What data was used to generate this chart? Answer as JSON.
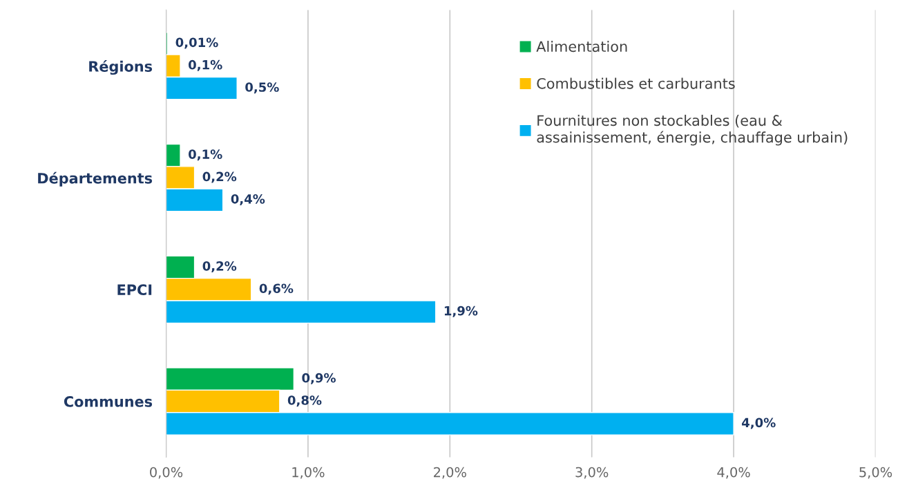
{
  "chart_data": {
    "type": "bar",
    "orientation": "horizontal",
    "categories": [
      "Régions",
      "Départements",
      "EPCI",
      "Communes"
    ],
    "series": [
      {
        "name": "Alimentation",
        "color": "#00b050",
        "values": [
          0.01,
          0.1,
          0.2,
          0.9
        ],
        "value_labels": [
          "0,01%",
          "0,1%",
          "0,2%",
          "0,9%"
        ]
      },
      {
        "name": "Combustibles et carburants",
        "color": "#ffc000",
        "values": [
          0.1,
          0.2,
          0.6,
          0.8
        ],
        "value_labels": [
          "0,1%",
          "0,2%",
          "0,6%",
          "0,8%"
        ]
      },
      {
        "name": "Fournitures non stockables (eau & assainissement, énergie, chauffage urbain)",
        "color": "#00b0f0",
        "values": [
          0.5,
          0.4,
          1.9,
          4.0
        ],
        "value_labels": [
          "0,5%",
          "0,4%",
          "1,9%",
          "4,0%"
        ]
      }
    ],
    "xlim": [
      0,
      5
    ],
    "xticks": [
      {
        "value": 0,
        "label": "0,0%"
      },
      {
        "value": 1,
        "label": "1,0%"
      },
      {
        "value": 2,
        "label": "2,0%"
      },
      {
        "value": 3,
        "label": "3,0%"
      },
      {
        "value": 4,
        "label": "4,0%"
      },
      {
        "value": 5,
        "label": "5,0%"
      }
    ],
    "grid": "x",
    "legend": "top right"
  }
}
